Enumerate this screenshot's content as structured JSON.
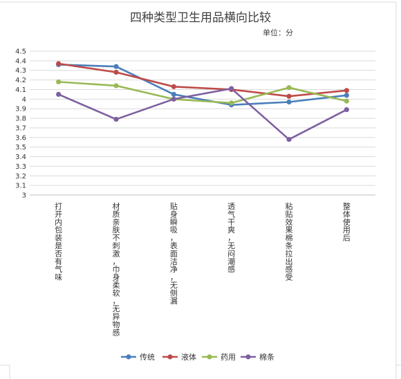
{
  "chart_data": {
    "type": "line",
    "title": "四种类型卫生用品横向比较",
    "subtitle": "单位：分",
    "xlabel": "",
    "ylabel": "",
    "ylim": [
      3,
      4.5
    ],
    "yticks": [
      "4.5",
      "4.4",
      "4.3",
      "4.2",
      "4.1",
      "4",
      "3.9",
      "3.8",
      "3.7",
      "3.6",
      "3.5",
      "3.4",
      "3.3",
      "3.2",
      "3.1",
      "3"
    ],
    "grid": true,
    "legend_position": "bottom",
    "categories": [
      "打开内包装是否有气味",
      "材质亲肤不刺激，巾身柔软，无异物感",
      "贴身瞬吸，表面洁净，无侧漏",
      "透气干爽，无闷潮感",
      "粘贴效果棉条拉出感受",
      "整体使用后"
    ],
    "series": [
      {
        "name": "传统",
        "color": "#4a7ebb",
        "values": [
          4.36,
          4.34,
          4.05,
          3.94,
          3.97,
          4.04
        ]
      },
      {
        "name": "液体",
        "color": "#be4b48",
        "values": [
          4.37,
          4.28,
          4.13,
          4.1,
          4.03,
          4.09
        ]
      },
      {
        "name": "药用",
        "color": "#98b954",
        "values": [
          4.18,
          4.14,
          4.0,
          3.96,
          4.12,
          3.98
        ]
      },
      {
        "name": "棉条",
        "color": "#7d60a0",
        "values": [
          4.05,
          3.79,
          4.0,
          4.11,
          3.58,
          3.89
        ]
      }
    ]
  }
}
